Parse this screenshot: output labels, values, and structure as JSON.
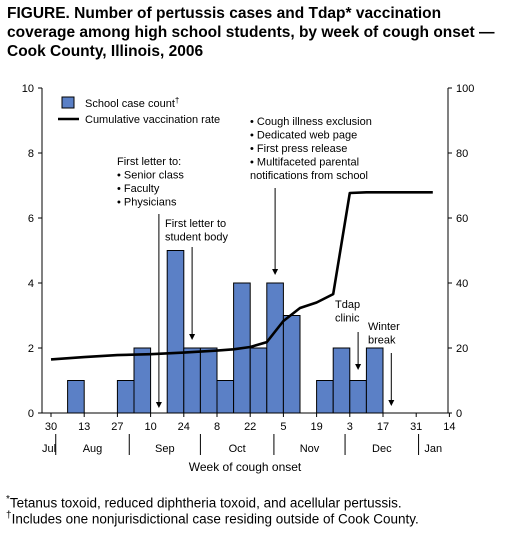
{
  "title": "FIGURE. Number of pertussis cases and Tdap* vaccination coverage among high school students, by week of cough onset — Cook County, Illinois, 2006",
  "colors": {
    "bar": "#5b80c6",
    "line": "#000000",
    "axis": "#000000"
  },
  "chart_data": {
    "type": "bar",
    "xlabel": "Week of cough onset",
    "x_week_ticks": [
      "30",
      "13",
      "27",
      "10",
      "24",
      "8",
      "22",
      "5",
      "19",
      "3",
      "17",
      "31",
      "14"
    ],
    "x_months": [
      "Jul",
      "Aug",
      "Sep",
      "Oct",
      "Nov",
      "Dec",
      "Jan"
    ],
    "y_left": {
      "ylim": [
        0,
        10
      ],
      "ticks": [
        "0",
        "2",
        "4",
        "6",
        "8",
        "10"
      ]
    },
    "y_right": {
      "ylim": [
        0,
        100
      ],
      "ticks": [
        "0",
        "20",
        "40",
        "60",
        "80",
        "100"
      ]
    },
    "legend": {
      "placement": "top-left",
      "bar_label": "School case count",
      "bar_marker": "†",
      "line_label": "Cumulative vaccination rate"
    },
    "series": [
      {
        "name": "School case count",
        "kind": "bar",
        "axis": "left",
        "weeks": [
          "Aug 6",
          "Aug 27",
          "Sep 3",
          "Sep 17",
          "Sep 24",
          "Oct 1",
          "Oct 8",
          "Oct 15",
          "Oct 22",
          "Oct 29",
          "Nov 5",
          "Nov 19",
          "Nov 26",
          "Dec 3",
          "Dec 10"
        ],
        "values": [
          1,
          1,
          2,
          5,
          2,
          2,
          1,
          4,
          2,
          4,
          3,
          1,
          2,
          1,
          2
        ]
      },
      {
        "name": "Cumulative vaccination rate",
        "kind": "line",
        "axis": "right",
        "points": [
          [
            "Jul 30",
            16.5
          ],
          [
            "Aug 13",
            17.2
          ],
          [
            "Aug 27",
            17.8
          ],
          [
            "Sep 10",
            18.1
          ],
          [
            "Sep 24",
            18.6
          ],
          [
            "Oct 8",
            19.2
          ],
          [
            "Oct 15",
            19.6
          ],
          [
            "Oct 22",
            20.3
          ],
          [
            "Oct 29",
            21.8
          ],
          [
            "Nov 5",
            28.3
          ],
          [
            "Nov 12",
            32.3
          ],
          [
            "Nov 19",
            34.0
          ],
          [
            "Nov 26",
            36.6
          ],
          [
            "Dec 3",
            67.7
          ],
          [
            "Dec 10",
            67.9
          ],
          [
            "Dec 24",
            67.9
          ],
          [
            "Jan 7",
            67.9
          ]
        ]
      }
    ],
    "annotations": [
      {
        "lines": [
          "First letter to:",
          "• Senior class",
          "• Faculty",
          "• Physicians"
        ],
        "week": "Sep 10"
      },
      {
        "lines": [
          "First letter to",
          "student body"
        ],
        "week": "Sep 24"
      },
      {
        "lines": [
          "• Cough illness exclusion",
          "• Dedicated web page",
          "• First press release",
          "• Multifaceted parental",
          "  notifications from school"
        ],
        "week": "Oct 29"
      },
      {
        "lines": [
          "Tdap",
          "clinic"
        ],
        "week": "Dec 3"
      },
      {
        "lines": [
          "Winter",
          "break"
        ],
        "week": "Dec 17"
      }
    ]
  },
  "footnotes": [
    {
      "marker": "*",
      "text": "Tetanus toxoid, reduced diphtheria toxoid, and acellular pertussis."
    },
    {
      "marker": "†",
      "text": "Includes one nonjurisdictional case residing outside of Cook County."
    }
  ]
}
